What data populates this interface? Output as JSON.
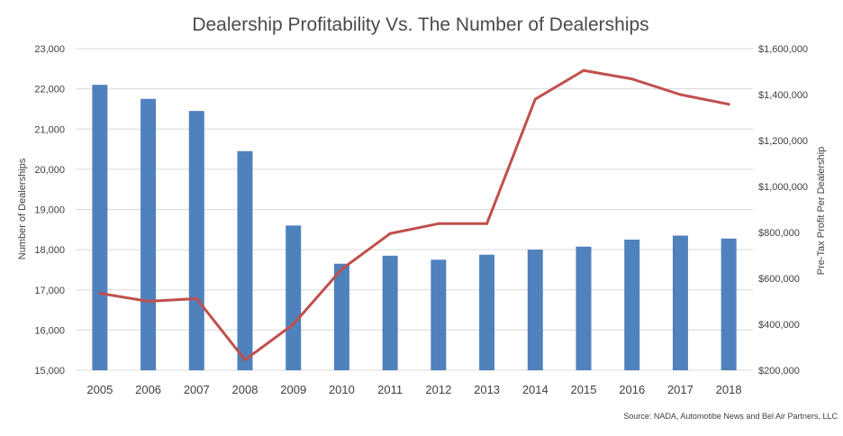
{
  "chart_data": {
    "type": "bar+line",
    "title": "Dealership Profitability Vs. The Number of Dealerships",
    "categories": [
      "2005",
      "2006",
      "2007",
      "2008",
      "2009",
      "2010",
      "2011",
      "2012",
      "2013",
      "2014",
      "2015",
      "2016",
      "2017",
      "2018"
    ],
    "ylabel_left": "Number of Dealerships",
    "ylabel_right": "Pre-Tax Profit Per Dealership",
    "ylim_left": [
      15000,
      23000
    ],
    "ylim_right": [
      200000,
      1600000
    ],
    "yticks_left": [
      "15,000",
      "16,000",
      "17,000",
      "18,000",
      "19,000",
      "20,000",
      "21,000",
      "22,000",
      "23,000"
    ],
    "yticks_right": [
      "$200,000",
      "$400,000",
      "$600,000",
      "$800,000",
      "$1,000,000",
      "$1,200,000",
      "$1,400,000",
      "$1,600,000"
    ],
    "grid": true,
    "legend": "none",
    "series": [
      {
        "type": "bar",
        "axis": "left",
        "color": "#4f81bd",
        "values": [
          22100,
          21750,
          21450,
          20450,
          18600,
          17650,
          17850,
          17750,
          17875,
          18000,
          18075,
          18250,
          18350,
          18275
        ]
      },
      {
        "type": "line",
        "axis": "right",
        "color": "#c0504d",
        "values": [
          535000,
          500000,
          512000,
          245000,
          400000,
          640000,
          795000,
          838000,
          838000,
          1380000,
          1505000,
          1468000,
          1400000,
          1358000
        ]
      }
    ],
    "source": "Source: NADA, Automotibe News and Bel Air Partners, LLC"
  }
}
